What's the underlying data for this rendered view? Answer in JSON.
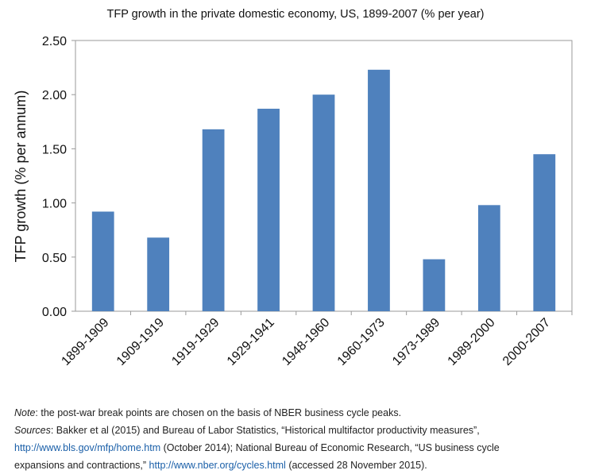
{
  "chart_data": {
    "type": "bar",
    "title": "TFP growth in the private domestic economy, US, 1899-2007 (% per year)",
    "ylabel": "TFP growth (% per annum)",
    "xlabel": "",
    "categories": [
      "1899-1909",
      "1909-1919",
      "1919-1929",
      "1929-1941",
      "1948-1960",
      "1960-1973",
      "1973-1989",
      "1989-2000",
      "2000-2007"
    ],
    "values": [
      0.92,
      0.68,
      1.68,
      1.87,
      2.0,
      2.23,
      0.48,
      0.98,
      1.45
    ],
    "ylim": [
      0,
      2.5
    ],
    "yticks": [
      "0.00",
      "0.50",
      "1.00",
      "1.50",
      "2.00",
      "2.50"
    ],
    "grid": false,
    "bar_color": "#4f81bd"
  },
  "notes": {
    "note_label": "Note",
    "note_text": ": the post-war break points are chosen on the basis of NBER business cycle peaks.",
    "sources_label": "Sources",
    "sources_text1": ": Bakker et al (2015) and Bureau of Labor Statistics, “Historical multifactor productivity measures”,",
    "link1": "http://www.bls.gov/mfp/home.htm",
    "text2": " (October 2014); National Bureau of Economic Research, “US business cycle",
    "text3": "expansions and contractions,” ",
    "link2": "http://www.nber.org/cycles.html",
    "text4": " (accessed 28 November 2015)."
  }
}
